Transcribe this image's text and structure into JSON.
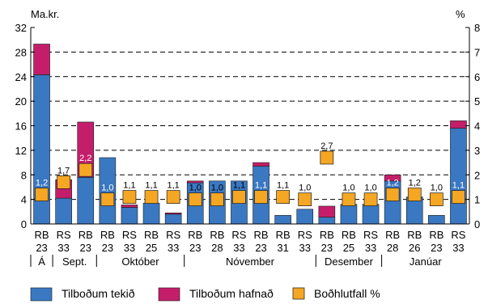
{
  "chart_data": {
    "type": "bar",
    "stacked": true,
    "title": "",
    "y_left_label": "Ma.kr.",
    "y_right_label": "%",
    "ylim_left": [
      0,
      32
    ],
    "ylim_right": [
      0,
      8
    ],
    "y_left_ticks": [
      "0",
      "4",
      "8",
      "12",
      "16",
      "20",
      "24",
      "28",
      "32"
    ],
    "y_right_ticks": [
      "0",
      "1",
      "2",
      "3",
      "4",
      "5",
      "6",
      "7",
      "8"
    ],
    "grid": "dashed horizontal",
    "categories": [
      {
        "code": "RB",
        "num": "23"
      },
      {
        "code": "RS",
        "num": "33"
      },
      {
        "code": "RB",
        "num": "23"
      },
      {
        "code": "RB",
        "num": "23"
      },
      {
        "code": "RS",
        "num": "33"
      },
      {
        "code": "RB",
        "num": "25"
      },
      {
        "code": "RS",
        "num": "33"
      },
      {
        "code": "RB",
        "num": "23"
      },
      {
        "code": "RB",
        "num": "28"
      },
      {
        "code": "RS",
        "num": "33"
      },
      {
        "code": "RB",
        "num": "23"
      },
      {
        "code": "RB",
        "num": "31"
      },
      {
        "code": "RS",
        "num": "33"
      },
      {
        "code": "RB",
        "num": "23"
      },
      {
        "code": "RB",
        "num": "25"
      },
      {
        "code": "RS",
        "num": "33"
      },
      {
        "code": "RB",
        "num": "28"
      },
      {
        "code": "RB",
        "num": "26"
      },
      {
        "code": "RB",
        "num": "23"
      },
      {
        "code": "RS",
        "num": "33"
      }
    ],
    "months": [
      {
        "label": "Á",
        "start": 0,
        "end": 0
      },
      {
        "label": "Sept.",
        "start": 1,
        "end": 2
      },
      {
        "label": "Október",
        "start": 3,
        "end": 6
      },
      {
        "label": "Nóvember",
        "start": 7,
        "end": 12
      },
      {
        "label": "Desember",
        "start": 13,
        "end": 15
      },
      {
        "label": "Janúar",
        "start": 16,
        "end": 19
      }
    ],
    "series": [
      {
        "name": "Tilboðum tekið",
        "type": "bar",
        "axis": "left",
        "color": "#3a78c2",
        "values": [
          24.3,
          4.2,
          7.6,
          10.8,
          2.7,
          3.4,
          1.6,
          6.7,
          7.0,
          7.0,
          9.4,
          1.4,
          2.4,
          1.1,
          3.2,
          3.2,
          7.0,
          4.4,
          1.4,
          15.6
        ]
      },
      {
        "name": "Tilboðum hafnað",
        "type": "bar",
        "axis": "left",
        "color": "#c41e6a",
        "values": [
          5.0,
          3.0,
          9.0,
          0.0,
          0.4,
          0.0,
          0.2,
          0.3,
          0.0,
          0.0,
          0.6,
          0.0,
          0.0,
          1.8,
          0.0,
          0.0,
          1.0,
          0.0,
          0.0,
          1.2
        ]
      },
      {
        "name": "Boðhlutfall %",
        "type": "marker",
        "axis": "right",
        "color": "#f5a623",
        "values": [
          1.2,
          1.7,
          2.2,
          1.0,
          1.1,
          1.1,
          1.1,
          1.0,
          1.0,
          1.1,
          1.1,
          1.1,
          1.0,
          2.7,
          1.0,
          1.0,
          1.2,
          1.2,
          1.0,
          1.1
        ],
        "labels": [
          "1,2",
          "1,7",
          "2,2",
          "1,0",
          "1,1",
          "1,1",
          "1,1",
          "1,0",
          "1,0",
          "1,1",
          "1,1",
          "1,1",
          "1,0",
          "2,7",
          "1,0",
          "1,0",
          "1,2",
          "1,2",
          "1,0",
          "1,1"
        ]
      }
    ],
    "legend_position": "bottom"
  }
}
